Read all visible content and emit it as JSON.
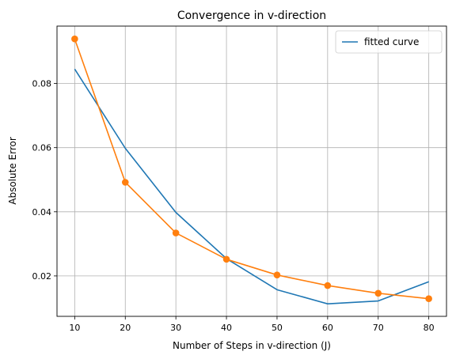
{
  "chart_data": {
    "type": "line",
    "title": "Convergence in v-direction",
    "xlabel": "Number of Steps in v-direction (J)",
    "ylabel": "Absolute Error",
    "x": [
      10,
      20,
      30,
      40,
      50,
      60,
      70,
      80
    ],
    "xticks": [
      "10",
      "20",
      "30",
      "40",
      "50",
      "60",
      "70",
      "80"
    ],
    "yticks": [
      "0.02",
      "0.04",
      "0.06",
      "0.08"
    ],
    "ytick_values": [
      0.02,
      0.04,
      0.06,
      0.08
    ],
    "xlim": [
      6.5,
      83.5
    ],
    "ylim": [
      0.0074,
      0.0979
    ],
    "grid": true,
    "legend_position": "top-right",
    "series": [
      {
        "name": "fitted curve",
        "color": "#1f77b4",
        "marker": "none",
        "in_legend": true,
        "values": [
          0.0845,
          0.0598,
          0.0398,
          0.0254,
          0.0157,
          0.0113,
          0.0122,
          0.0182
        ]
      },
      {
        "color": "#ff7f0e",
        "marker": "circle",
        "in_legend": false,
        "values": [
          0.0939,
          0.0492,
          0.0334,
          0.0252,
          0.0203,
          0.017,
          0.0146,
          0.0129
        ]
      }
    ]
  }
}
